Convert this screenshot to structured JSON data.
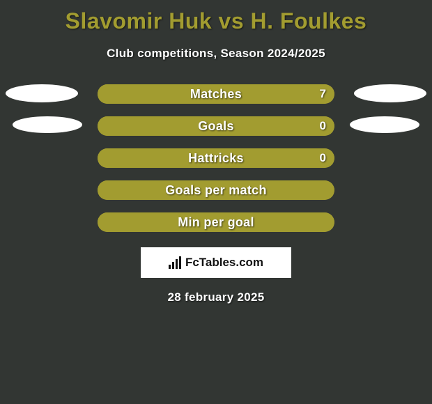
{
  "background_color": "#323633",
  "title": {
    "text": "Slavomir Huk vs H. Foulkes",
    "color": "#a29c30",
    "fontsize": 32,
    "fontweight": 800
  },
  "subtitle": {
    "text": "Club competitions, Season 2024/2025",
    "color": "#ffffff",
    "fontsize": 17,
    "fontweight": 700
  },
  "bar_style": {
    "track_width": 340,
    "track_height": 28,
    "border_radius": 14,
    "track_color": "#a29c30",
    "fill_color": "#a29c30",
    "label_color": "#ffffff",
    "label_fontsize": 18,
    "label_fontweight": 700,
    "value_color": "#ffffff",
    "value_fontsize": 17,
    "row_gap": 18
  },
  "ellipses": {
    "color": "#ffffff",
    "rows": [
      0,
      1
    ]
  },
  "stats": [
    {
      "label": "Matches",
      "value": "7",
      "left_pct": 0,
      "right_pct": 100,
      "show_value": true
    },
    {
      "label": "Goals",
      "value": "0",
      "left_pct": 0,
      "right_pct": 100,
      "show_value": true
    },
    {
      "label": "Hattricks",
      "value": "0",
      "left_pct": 0,
      "right_pct": 100,
      "show_value": true
    },
    {
      "label": "Goals per match",
      "value": "",
      "left_pct": 0,
      "right_pct": 100,
      "show_value": false
    },
    {
      "label": "Min per goal",
      "value": "",
      "left_pct": 0,
      "right_pct": 100,
      "show_value": false
    }
  ],
  "footer": {
    "brand_text": "FcTables.com",
    "box_bg": "#ffffff",
    "text_color": "#111111",
    "fontsize": 17,
    "fontweight": 700,
    "logo_bar_heights": [
      6,
      10,
      14,
      18
    ]
  },
  "date": {
    "text": "28 february 2025",
    "color": "#ffffff",
    "fontsize": 17,
    "fontweight": 700
  }
}
